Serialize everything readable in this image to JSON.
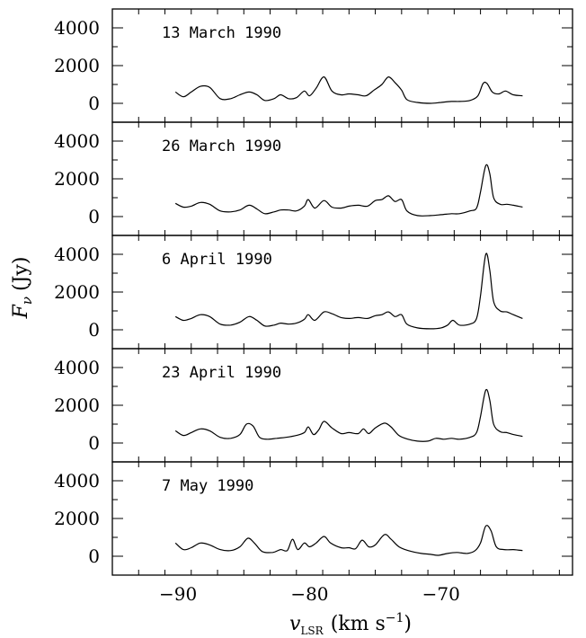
{
  "chart_data": {
    "type": "line",
    "xlim": [
      -95,
      -60
    ],
    "ylim": [
      -1000,
      5000
    ],
    "x_ticks": [
      -90,
      -80,
      -70
    ],
    "y_ticks": [
      0,
      2000,
      4000
    ],
    "x_tick_labels": [
      "−90",
      "−80",
      "−70"
    ],
    "y_tick_labels": [
      "0",
      "2000",
      "4000"
    ],
    "ylabel": {
      "main": "F",
      "sub": "ν",
      "unit": "(Jy)"
    },
    "xlabel": {
      "main": "v",
      "sub": "LSR",
      "unit_pre": "(km s",
      "unit_sup": "−1",
      "unit_post": ")"
    },
    "grid": false,
    "panels": [
      {
        "label": "13 March 1990",
        "series": [
          {
            "x": -90.2,
            "y": 600
          },
          {
            "x": -89.6,
            "y": 350
          },
          {
            "x": -89.0,
            "y": 600
          },
          {
            "x": -88.3,
            "y": 900
          },
          {
            "x": -87.6,
            "y": 850
          },
          {
            "x": -86.8,
            "y": 250
          },
          {
            "x": -86.0,
            "y": 250
          },
          {
            "x": -85.3,
            "y": 450
          },
          {
            "x": -84.6,
            "y": 600
          },
          {
            "x": -84.0,
            "y": 450
          },
          {
            "x": -83.4,
            "y": 150
          },
          {
            "x": -82.7,
            "y": 250
          },
          {
            "x": -82.2,
            "y": 450
          },
          {
            "x": -81.6,
            "y": 250
          },
          {
            "x": -81.0,
            "y": 300
          },
          {
            "x": -80.4,
            "y": 650
          },
          {
            "x": -80.0,
            "y": 400
          },
          {
            "x": -79.5,
            "y": 800
          },
          {
            "x": -78.9,
            "y": 1400
          },
          {
            "x": -78.3,
            "y": 650
          },
          {
            "x": -77.6,
            "y": 450
          },
          {
            "x": -77.0,
            "y": 500
          },
          {
            "x": -76.3,
            "y": 450
          },
          {
            "x": -75.7,
            "y": 400
          },
          {
            "x": -75.1,
            "y": 700
          },
          {
            "x": -74.5,
            "y": 1000
          },
          {
            "x": -74.0,
            "y": 1400
          },
          {
            "x": -73.5,
            "y": 1100
          },
          {
            "x": -73.0,
            "y": 700
          },
          {
            "x": -72.6,
            "y": 200
          },
          {
            "x": -71.8,
            "y": 50
          },
          {
            "x": -70.8,
            "y": 0
          },
          {
            "x": -70.0,
            "y": 50
          },
          {
            "x": -69.2,
            "y": 100
          },
          {
            "x": -68.6,
            "y": 100
          },
          {
            "x": -67.8,
            "y": 150
          },
          {
            "x": -67.2,
            "y": 400
          },
          {
            "x": -66.8,
            "y": 1050
          },
          {
            "x": -66.5,
            "y": 1050
          },
          {
            "x": -66.1,
            "y": 600
          },
          {
            "x": -65.6,
            "y": 500
          },
          {
            "x": -65.1,
            "y": 650
          },
          {
            "x": -64.5,
            "y": 450
          },
          {
            "x": -63.8,
            "y": 400
          }
        ]
      },
      {
        "label": "26 March 1990",
        "series": [
          {
            "x": -90.2,
            "y": 700
          },
          {
            "x": -89.6,
            "y": 500
          },
          {
            "x": -89.0,
            "y": 550
          },
          {
            "x": -88.3,
            "y": 750
          },
          {
            "x": -87.6,
            "y": 650
          },
          {
            "x": -86.8,
            "y": 300
          },
          {
            "x": -86.0,
            "y": 250
          },
          {
            "x": -85.3,
            "y": 350
          },
          {
            "x": -84.6,
            "y": 600
          },
          {
            "x": -84.0,
            "y": 400
          },
          {
            "x": -83.4,
            "y": 150
          },
          {
            "x": -82.7,
            "y": 250
          },
          {
            "x": -82.2,
            "y": 350
          },
          {
            "x": -81.6,
            "y": 350
          },
          {
            "x": -81.0,
            "y": 300
          },
          {
            "x": -80.4,
            "y": 550
          },
          {
            "x": -80.1,
            "y": 900
          },
          {
            "x": -79.6,
            "y": 450
          },
          {
            "x": -78.9,
            "y": 850
          },
          {
            "x": -78.3,
            "y": 500
          },
          {
            "x": -77.6,
            "y": 450
          },
          {
            "x": -77.0,
            "y": 550
          },
          {
            "x": -76.3,
            "y": 600
          },
          {
            "x": -75.6,
            "y": 550
          },
          {
            "x": -75.0,
            "y": 850
          },
          {
            "x": -74.5,
            "y": 900
          },
          {
            "x": -74.0,
            "y": 1100
          },
          {
            "x": -73.5,
            "y": 800
          },
          {
            "x": -73.0,
            "y": 900
          },
          {
            "x": -72.6,
            "y": 300
          },
          {
            "x": -71.8,
            "y": 50
          },
          {
            "x": -70.8,
            "y": 50
          },
          {
            "x": -70.0,
            "y": 100
          },
          {
            "x": -69.2,
            "y": 150
          },
          {
            "x": -68.6,
            "y": 150
          },
          {
            "x": -67.8,
            "y": 300
          },
          {
            "x": -67.3,
            "y": 450
          },
          {
            "x": -67.0,
            "y": 1300
          },
          {
            "x": -66.6,
            "y": 2700
          },
          {
            "x": -66.3,
            "y": 2300
          },
          {
            "x": -66.0,
            "y": 1000
          },
          {
            "x": -65.5,
            "y": 650
          },
          {
            "x": -65.0,
            "y": 650
          },
          {
            "x": -64.5,
            "y": 600
          },
          {
            "x": -63.8,
            "y": 500
          }
        ]
      },
      {
        "label": "6 April 1990",
        "series": [
          {
            "x": -90.2,
            "y": 700
          },
          {
            "x": -89.6,
            "y": 500
          },
          {
            "x": -89.0,
            "y": 600
          },
          {
            "x": -88.3,
            "y": 800
          },
          {
            "x": -87.6,
            "y": 700
          },
          {
            "x": -86.8,
            "y": 300
          },
          {
            "x": -86.0,
            "y": 250
          },
          {
            "x": -85.3,
            "y": 400
          },
          {
            "x": -84.6,
            "y": 700
          },
          {
            "x": -84.0,
            "y": 500
          },
          {
            "x": -83.4,
            "y": 200
          },
          {
            "x": -82.7,
            "y": 250
          },
          {
            "x": -82.2,
            "y": 350
          },
          {
            "x": -81.6,
            "y": 300
          },
          {
            "x": -81.0,
            "y": 350
          },
          {
            "x": -80.4,
            "y": 550
          },
          {
            "x": -80.1,
            "y": 800
          },
          {
            "x": -79.6,
            "y": 500
          },
          {
            "x": -78.9,
            "y": 950
          },
          {
            "x": -78.3,
            "y": 850
          },
          {
            "x": -77.6,
            "y": 650
          },
          {
            "x": -77.0,
            "y": 600
          },
          {
            "x": -76.3,
            "y": 650
          },
          {
            "x": -75.6,
            "y": 600
          },
          {
            "x": -75.0,
            "y": 750
          },
          {
            "x": -74.5,
            "y": 800
          },
          {
            "x": -74.0,
            "y": 950
          },
          {
            "x": -73.5,
            "y": 700
          },
          {
            "x": -73.0,
            "y": 800
          },
          {
            "x": -72.6,
            "y": 300
          },
          {
            "x": -71.8,
            "y": 100
          },
          {
            "x": -70.8,
            "y": 50
          },
          {
            "x": -70.0,
            "y": 100
          },
          {
            "x": -69.5,
            "y": 250
          },
          {
            "x": -69.1,
            "y": 500
          },
          {
            "x": -68.6,
            "y": 250
          },
          {
            "x": -67.8,
            "y": 300
          },
          {
            "x": -67.3,
            "y": 600
          },
          {
            "x": -67.0,
            "y": 1800
          },
          {
            "x": -66.6,
            "y": 4000
          },
          {
            "x": -66.3,
            "y": 3200
          },
          {
            "x": -66.0,
            "y": 1500
          },
          {
            "x": -65.5,
            "y": 1000
          },
          {
            "x": -65.0,
            "y": 950
          },
          {
            "x": -64.5,
            "y": 800
          },
          {
            "x": -63.8,
            "y": 600
          }
        ]
      },
      {
        "label": "23 April 1990",
        "series": [
          {
            "x": -90.2,
            "y": 650
          },
          {
            "x": -89.6,
            "y": 400
          },
          {
            "x": -89.0,
            "y": 550
          },
          {
            "x": -88.3,
            "y": 750
          },
          {
            "x": -87.6,
            "y": 650
          },
          {
            "x": -86.8,
            "y": 300
          },
          {
            "x": -86.0,
            "y": 250
          },
          {
            "x": -85.3,
            "y": 450
          },
          {
            "x": -84.8,
            "y": 1000
          },
          {
            "x": -84.3,
            "y": 900
          },
          {
            "x": -83.8,
            "y": 300
          },
          {
            "x": -83.2,
            "y": 200
          },
          {
            "x": -82.5,
            "y": 250
          },
          {
            "x": -81.8,
            "y": 300
          },
          {
            "x": -81.0,
            "y": 400
          },
          {
            "x": -80.4,
            "y": 550
          },
          {
            "x": -80.1,
            "y": 850
          },
          {
            "x": -79.7,
            "y": 450
          },
          {
            "x": -79.3,
            "y": 700
          },
          {
            "x": -78.9,
            "y": 1150
          },
          {
            "x": -78.3,
            "y": 800
          },
          {
            "x": -77.6,
            "y": 500
          },
          {
            "x": -77.0,
            "y": 550
          },
          {
            "x": -76.3,
            "y": 500
          },
          {
            "x": -75.9,
            "y": 750
          },
          {
            "x": -75.5,
            "y": 500
          },
          {
            "x": -75.0,
            "y": 800
          },
          {
            "x": -74.3,
            "y": 1050
          },
          {
            "x": -73.8,
            "y": 850
          },
          {
            "x": -73.2,
            "y": 400
          },
          {
            "x": -72.5,
            "y": 200
          },
          {
            "x": -71.8,
            "y": 100
          },
          {
            "x": -71.0,
            "y": 100
          },
          {
            "x": -70.4,
            "y": 250
          },
          {
            "x": -69.8,
            "y": 200
          },
          {
            "x": -69.2,
            "y": 250
          },
          {
            "x": -68.6,
            "y": 200
          },
          {
            "x": -67.8,
            "y": 300
          },
          {
            "x": -67.3,
            "y": 550
          },
          {
            "x": -67.0,
            "y": 1400
          },
          {
            "x": -66.6,
            "y": 2800
          },
          {
            "x": -66.3,
            "y": 2300
          },
          {
            "x": -66.0,
            "y": 1000
          },
          {
            "x": -65.5,
            "y": 600
          },
          {
            "x": -65.0,
            "y": 550
          },
          {
            "x": -64.5,
            "y": 450
          },
          {
            "x": -63.8,
            "y": 350
          }
        ]
      },
      {
        "label": "7 May 1990",
        "series": [
          {
            "x": -90.2,
            "y": 700
          },
          {
            "x": -89.6,
            "y": 350
          },
          {
            "x": -89.0,
            "y": 450
          },
          {
            "x": -88.3,
            "y": 700
          },
          {
            "x": -87.6,
            "y": 600
          },
          {
            "x": -86.8,
            "y": 350
          },
          {
            "x": -86.0,
            "y": 300
          },
          {
            "x": -85.3,
            "y": 500
          },
          {
            "x": -84.7,
            "y": 950
          },
          {
            "x": -84.2,
            "y": 700
          },
          {
            "x": -83.6,
            "y": 250
          },
          {
            "x": -82.8,
            "y": 200
          },
          {
            "x": -82.2,
            "y": 350
          },
          {
            "x": -81.7,
            "y": 300
          },
          {
            "x": -81.3,
            "y": 900
          },
          {
            "x": -80.9,
            "y": 350
          },
          {
            "x": -80.4,
            "y": 700
          },
          {
            "x": -80.0,
            "y": 500
          },
          {
            "x": -79.5,
            "y": 700
          },
          {
            "x": -78.9,
            "y": 1050
          },
          {
            "x": -78.4,
            "y": 700
          },
          {
            "x": -77.6,
            "y": 450
          },
          {
            "x": -77.0,
            "y": 450
          },
          {
            "x": -76.5,
            "y": 400
          },
          {
            "x": -76.0,
            "y": 850
          },
          {
            "x": -75.5,
            "y": 500
          },
          {
            "x": -75.0,
            "y": 600
          },
          {
            "x": -74.3,
            "y": 1150
          },
          {
            "x": -73.8,
            "y": 900
          },
          {
            "x": -73.2,
            "y": 500
          },
          {
            "x": -72.5,
            "y": 300
          },
          {
            "x": -71.5,
            "y": 150
          },
          {
            "x": -70.8,
            "y": 100
          },
          {
            "x": -70.2,
            "y": 50
          },
          {
            "x": -69.5,
            "y": 150
          },
          {
            "x": -68.8,
            "y": 200
          },
          {
            "x": -68.0,
            "y": 150
          },
          {
            "x": -67.4,
            "y": 300
          },
          {
            "x": -67.0,
            "y": 700
          },
          {
            "x": -66.6,
            "y": 1600
          },
          {
            "x": -66.2,
            "y": 1350
          },
          {
            "x": -65.8,
            "y": 500
          },
          {
            "x": -65.2,
            "y": 350
          },
          {
            "x": -64.5,
            "y": 350
          },
          {
            "x": -63.8,
            "y": 300
          }
        ]
      }
    ]
  }
}
